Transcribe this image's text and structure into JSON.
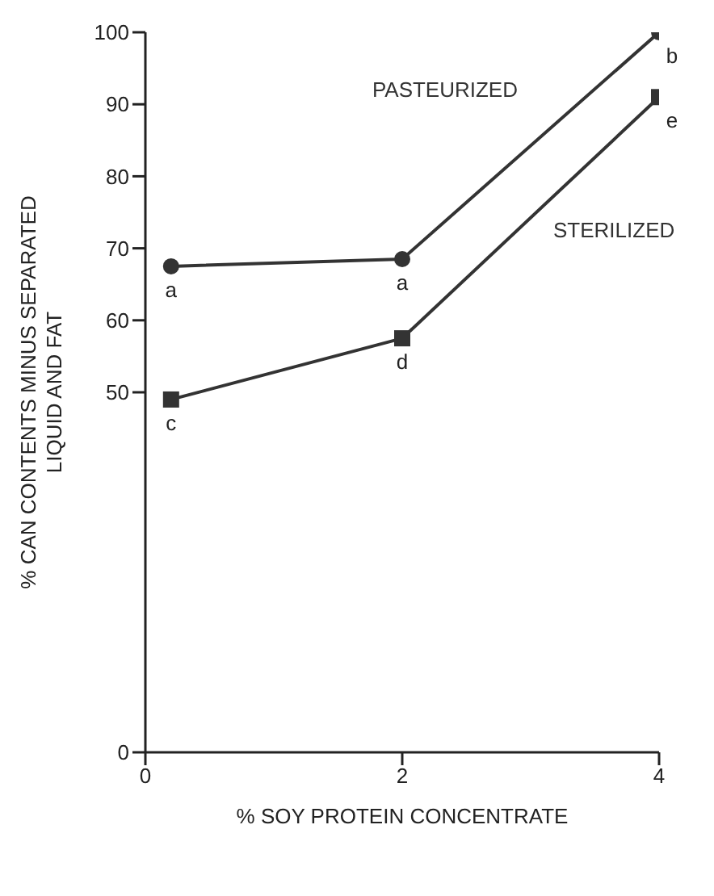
{
  "chart_data": {
    "type": "line",
    "xlabel": "% SOY PROTEIN CONCENTRATE",
    "ylabel": "% CAN CONTENTS MINUS SEPARATED LIQUID AND FAT",
    "series": [
      {
        "name": "PASTEURIZED",
        "color": "#333333",
        "marker": "circle",
        "x": [
          0.2,
          2,
          4
        ],
        "values": [
          67.5,
          68.5,
          100
        ]
      },
      {
        "name": "STERILIZED",
        "color": "#333333",
        "marker": "square",
        "x": [
          0.2,
          2,
          4
        ],
        "values": [
          49,
          57.5,
          91
        ]
      }
    ],
    "xlim": [
      0,
      4
    ],
    "xticks": [
      0,
      2,
      4
    ],
    "ylim": [
      0,
      100
    ],
    "yticks": [
      0,
      50,
      60,
      70,
      80,
      90,
      100
    ],
    "grid": false,
    "line_style": "solid",
    "annotations": [
      {
        "text": "a",
        "x": 0.2,
        "y": 67.5
      },
      {
        "text": "a",
        "x": 2,
        "y": 68.5
      },
      {
        "text": "b",
        "x": 4,
        "y": 100
      },
      {
        "text": "c",
        "x": 0.2,
        "y": 49
      },
      {
        "text": "d",
        "x": 2,
        "y": 57.5
      },
      {
        "text": "e",
        "x": 4,
        "y": 91
      }
    ]
  }
}
